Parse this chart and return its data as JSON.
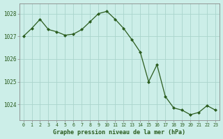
{
  "x": [
    0,
    1,
    2,
    3,
    4,
    5,
    6,
    7,
    8,
    9,
    10,
    11,
    12,
    13,
    14,
    15,
    16,
    17,
    18,
    19,
    20,
    21,
    22,
    23
  ],
  "y": [
    1027.0,
    1027.35,
    1027.75,
    1027.3,
    1027.2,
    1027.05,
    1027.1,
    1027.3,
    1027.65,
    1028.0,
    1028.1,
    1027.75,
    1027.35,
    1026.85,
    1026.3,
    1025.0,
    1025.75,
    1024.35,
    1023.85,
    1023.75,
    1023.55,
    1023.65,
    1023.95,
    1023.75
  ],
  "line_color": "#2a5c1e",
  "marker_color": "#2a5c1e",
  "bg_color": "#cceee8",
  "grid_color": "#aad4cc",
  "title": "Graphe pression niveau de la mer (hPa)",
  "ylabel_ticks": [
    1024,
    1025,
    1026,
    1027,
    1028
  ],
  "ylim": [
    1023.3,
    1028.45
  ],
  "xlim": [
    -0.5,
    23.5
  ]
}
